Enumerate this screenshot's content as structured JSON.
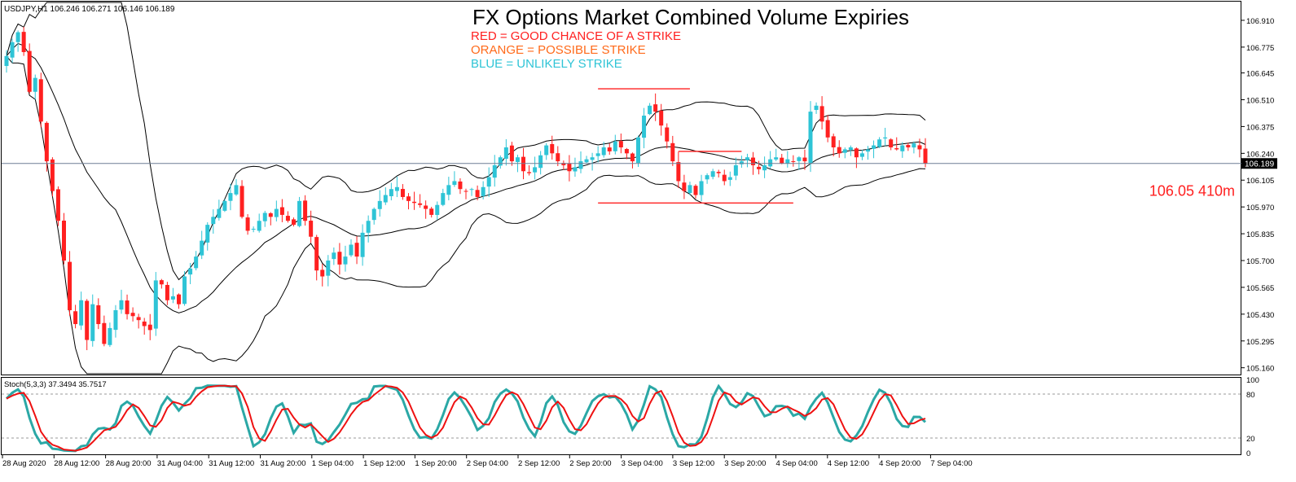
{
  "chart_data": [
    {
      "type": "candlestick",
      "symbol_header": "USDJPY,H1  106.246 106.271 106.146 106.189",
      "title": "FX Options Market Combined Volume Expiries",
      "legend_notes": [
        {
          "text": "RED = GOOD CHANCE OF A STRIKE",
          "color": "#ff2020"
        },
        {
          "text": "ORANGE = POSSIBLE STRIKE",
          "color": "#ff6a1a"
        },
        {
          "text": "BLUE = UNLIKELY STRIKE",
          "color": "#2ec4d6"
        }
      ],
      "y_ticks": [
        "106.910",
        "106.775",
        "106.645",
        "106.510",
        "106.375",
        "106.240",
        "106.105",
        "105.970",
        "105.835",
        "105.700",
        "105.565",
        "105.430",
        "105.295",
        "105.160"
      ],
      "ylim": [
        105.13,
        107.0
      ],
      "current_price": {
        "value": 106.189,
        "label": "106.189"
      },
      "expiry_annotation": {
        "label": "106.05 410m",
        "price": 106.05,
        "color": "#ff2020"
      },
      "x_ticks": [
        "28 Aug 2020",
        "28 Aug 12:00",
        "28 Aug 20:00",
        "31 Aug 04:00",
        "31 Aug 12:00",
        "31 Aug 20:00",
        "1 Sep 04:00",
        "1 Sep 12:00",
        "1 Sep 20:00",
        "2 Sep 04:00",
        "2 Sep 12:00",
        "2 Sep 20:00",
        "3 Sep 04:00",
        "3 Sep 12:00",
        "3 Sep 20:00",
        "4 Sep 04:00",
        "4 Sep 12:00",
        "4 Sep 20:00",
        "7 Sep 04:00"
      ],
      "bull_color": "#2ec4d6",
      "bear_color": "#ff2020",
      "close_series": [
        106.73,
        106.8,
        106.85,
        106.75,
        106.55,
        106.62,
        106.4,
        106.2,
        106.05,
        105.9,
        105.7,
        105.45,
        105.38,
        105.5,
        105.3,
        105.48,
        105.38,
        105.28,
        105.36,
        105.45,
        105.5,
        105.43,
        105.42,
        105.4,
        105.37,
        105.35,
        105.6,
        105.58,
        105.5,
        105.52,
        105.48,
        105.62,
        105.66,
        105.72,
        105.8,
        105.88,
        105.92,
        105.96,
        106.0,
        106.04,
        106.08,
        105.92,
        105.85,
        105.86,
        105.9,
        105.94,
        105.92,
        105.96,
        105.93,
        105.9,
        105.88,
        106.0,
        105.9,
        105.82,
        105.65,
        105.62,
        105.7,
        105.74,
        105.68,
        105.72,
        105.78,
        105.72,
        105.84,
        105.9,
        105.96,
        106.0,
        106.03,
        106.06,
        106.07,
        106.02,
        106.0,
        105.99,
        105.98,
        105.96,
        105.93,
        105.98,
        106.04,
        106.08,
        106.1,
        106.06,
        106.05,
        106.06,
        106.02,
        106.07,
        106.12,
        106.18,
        106.22,
        106.27,
        106.2,
        106.22,
        106.15,
        106.14,
        106.17,
        106.23,
        106.28,
        106.24,
        106.2,
        106.18,
        106.15,
        106.17,
        106.2,
        106.21,
        106.22,
        106.24,
        106.27,
        106.25,
        106.3,
        106.27,
        106.24,
        106.2,
        106.32,
        106.43,
        106.48,
        106.45,
        106.38,
        106.3,
        106.2,
        106.1,
        106.05,
        106.08,
        106.03,
        106.1,
        106.13,
        106.15,
        106.14,
        106.1,
        106.12,
        106.18,
        106.2,
        106.22,
        106.18,
        106.16,
        106.18,
        106.21,
        106.22,
        106.19,
        106.21,
        106.2,
        106.22,
        106.2,
        106.45,
        106.48,
        106.4,
        106.32,
        106.27,
        106.24,
        106.26,
        106.27,
        106.22,
        106.24,
        106.26,
        106.28,
        106.31,
        106.32,
        106.27,
        106.26,
        106.28,
        106.27,
        106.29,
        106.26,
        106.19
      ],
      "bands": {
        "period": 20,
        "deviations": 2
      },
      "horizontal_marks": [
        {
          "price": 106.565,
          "from_bar": 103,
          "to_bar": 119,
          "color": "#ff2020"
        },
        {
          "price": 106.25,
          "from_bar": 117,
          "to_bar": 128,
          "color": "#ff2020"
        },
        {
          "price": 105.99,
          "from_bar": 103,
          "to_bar": 137,
          "color": "#ff2020"
        }
      ]
    },
    {
      "type": "line",
      "indicator_label": "Stoch(5,3,3) 37.3494 35.7517",
      "y_ticks": [
        "100",
        "80",
        "20",
        "0"
      ],
      "ylim": [
        0,
        100
      ],
      "levels": [
        20,
        80
      ],
      "series": [
        {
          "color": "#2ba8a6",
          "values": []
        },
        {
          "color": "#ee1111",
          "values": []
        }
      ]
    }
  ]
}
